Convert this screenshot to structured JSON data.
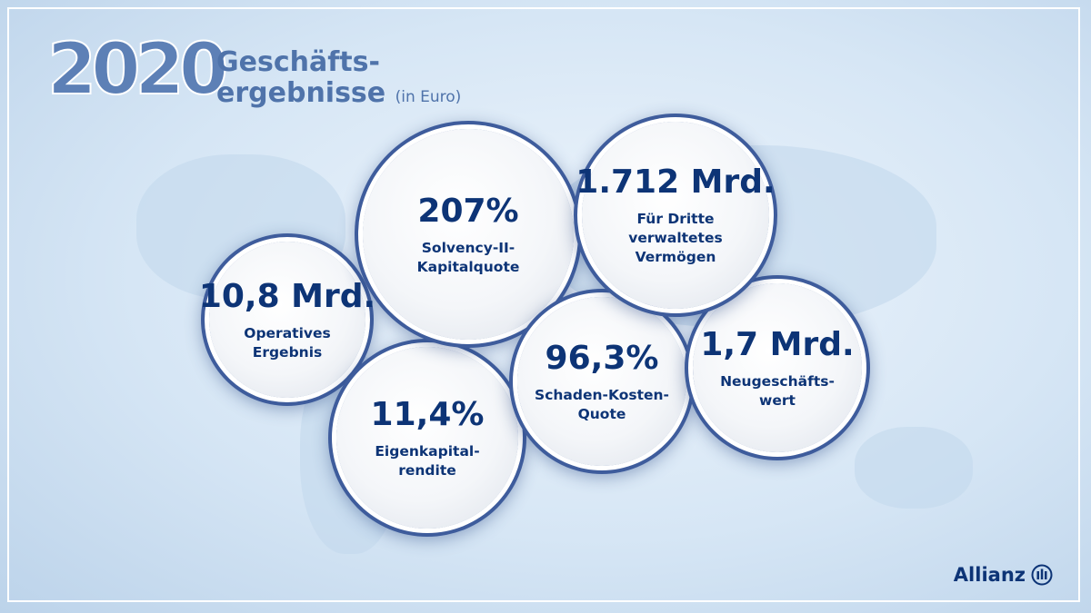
{
  "header": {
    "year": "2020",
    "title_lines": [
      "Geschäfts-",
      "ergebnisse"
    ],
    "unit": "(in Euro)"
  },
  "circles": [
    {
      "value": "10,8 Mrd.",
      "label_lines": [
        "Operatives",
        "Ergebnis"
      ]
    },
    {
      "value": "11,4%",
      "label_lines": [
        "Eigenkapital-",
        "rendite"
      ]
    },
    {
      "value": "207%",
      "label_lines": [
        "Solvency-II-",
        "Kapitalquote"
      ]
    },
    {
      "value": "96,3%",
      "label_lines": [
        "Schaden-Kosten-",
        "Quote"
      ]
    },
    {
      "value": "1,7 Mrd.",
      "label_lines": [
        "Neugeschäfts-",
        "wert"
      ]
    },
    {
      "value": "1.712 Mrd.",
      "label_lines": [
        "Für Dritte",
        "verwaltetes",
        "Vermögen"
      ]
    }
  ],
  "logo": "Allianz"
}
